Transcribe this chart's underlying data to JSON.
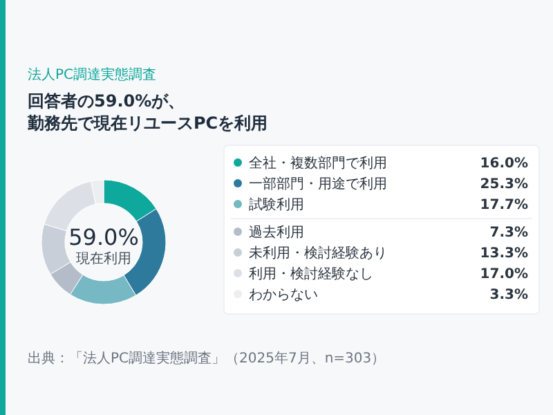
{
  "chart_data": {
    "type": "donut",
    "subtitle": "法人PC調達実態調査",
    "title": "回答者の59.0%が、勤務先で現在リユースPCを利用",
    "categories": [
      "全社・複数部門で利用",
      "一部部門・用途で利用",
      "試験利用",
      "過去利用",
      "未利用・検討経験あり",
      "利用・検討経験なし",
      "わからない"
    ],
    "values": [
      16.0,
      25.3,
      17.7,
      7.3,
      13.3,
      17.0,
      3.3
    ],
    "colors": [
      "#0fa89c",
      "#2e7a9c",
      "#76b8c4",
      "#b3bcc8",
      "#c9cfd8",
      "#dce0e6",
      "#eceef2"
    ],
    "value_labels": [
      "16.0%",
      "25.3%",
      "17.7%",
      "7.3%",
      "13.3%",
      "17.0%",
      "3.3%"
    ],
    "annotations": [
      "59.0%",
      "現在利用",
      "出典：「法人PC調達実態調査」（2025年7月、n=303）"
    ],
    "legend": "right"
  }
}
